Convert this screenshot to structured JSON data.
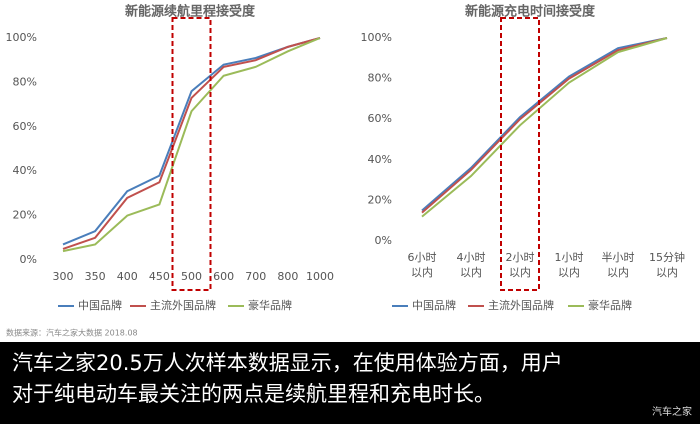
{
  "chart_data": [
    {
      "type": "line",
      "title": "新能源续航里程接受度",
      "categories": [
        "300",
        "350",
        "400",
        "450",
        "500",
        "600",
        "700",
        "800",
        "1000"
      ],
      "series": [
        {
          "name": "中国品牌",
          "color": "#4a7ebb",
          "values": [
            7,
            13,
            31,
            38,
            76,
            88,
            91,
            96,
            100
          ]
        },
        {
          "name": "主流外国品牌",
          "color": "#c0504d",
          "values": [
            5,
            10,
            28,
            35,
            73,
            87,
            90,
            96,
            100
          ]
        },
        {
          "name": "豪华品牌",
          "color": "#9bbb59",
          "values": [
            4,
            7,
            20,
            25,
            67,
            83,
            87,
            94,
            100
          ]
        }
      ],
      "ylim": [
        0,
        100
      ],
      "yticks": [
        {
          "value": 0,
          "label": "0%"
        },
        {
          "value": 20,
          "label": "20%"
        },
        {
          "value": 40,
          "label": "40%"
        },
        {
          "value": 60,
          "label": "60%"
        },
        {
          "value": 80,
          "label": "80%"
        },
        {
          "value": 100,
          "label": "100%"
        }
      ],
      "grid": false,
      "legend": "bottom"
    },
    {
      "type": "line",
      "title": "新能源充电时间接受度",
      "categories": [
        "6小时\n以内",
        "4小时\n以内",
        "2小时\n以内",
        "1小时\n以内",
        "半小时\n以内",
        "15分钟\n以内"
      ],
      "series": [
        {
          "name": "中国品牌",
          "color": "#4a7ebb",
          "values": [
            15,
            36,
            61,
            81,
            95,
            100
          ]
        },
        {
          "name": "主流外国品牌",
          "color": "#c0504d",
          "values": [
            14,
            35,
            60,
            80,
            94,
            100
          ]
        },
        {
          "name": "豪华品牌",
          "color": "#9bbb59",
          "values": [
            12,
            32,
            57,
            78,
            93,
            100
          ]
        }
      ],
      "ylim": [
        0,
        100
      ],
      "yticks": [
        {
          "value": 0,
          "label": "0%"
        },
        {
          "value": 20,
          "label": "20%"
        },
        {
          "value": 40,
          "label": "40%"
        },
        {
          "value": 60,
          "label": "60%"
        },
        {
          "value": 80,
          "label": "80%"
        },
        {
          "value": 100,
          "label": "100%"
        }
      ],
      "grid": false,
      "legend": "bottom"
    }
  ],
  "source": "数据来源：汽车之家大数据 2018.08",
  "caption": [
    "汽车之家20.5万人次样本数据显示，在使用体验方面，用户",
    "对于纯电动车最关注的两点是续航里程和充电时长。"
  ],
  "watermark": "汽车之家"
}
